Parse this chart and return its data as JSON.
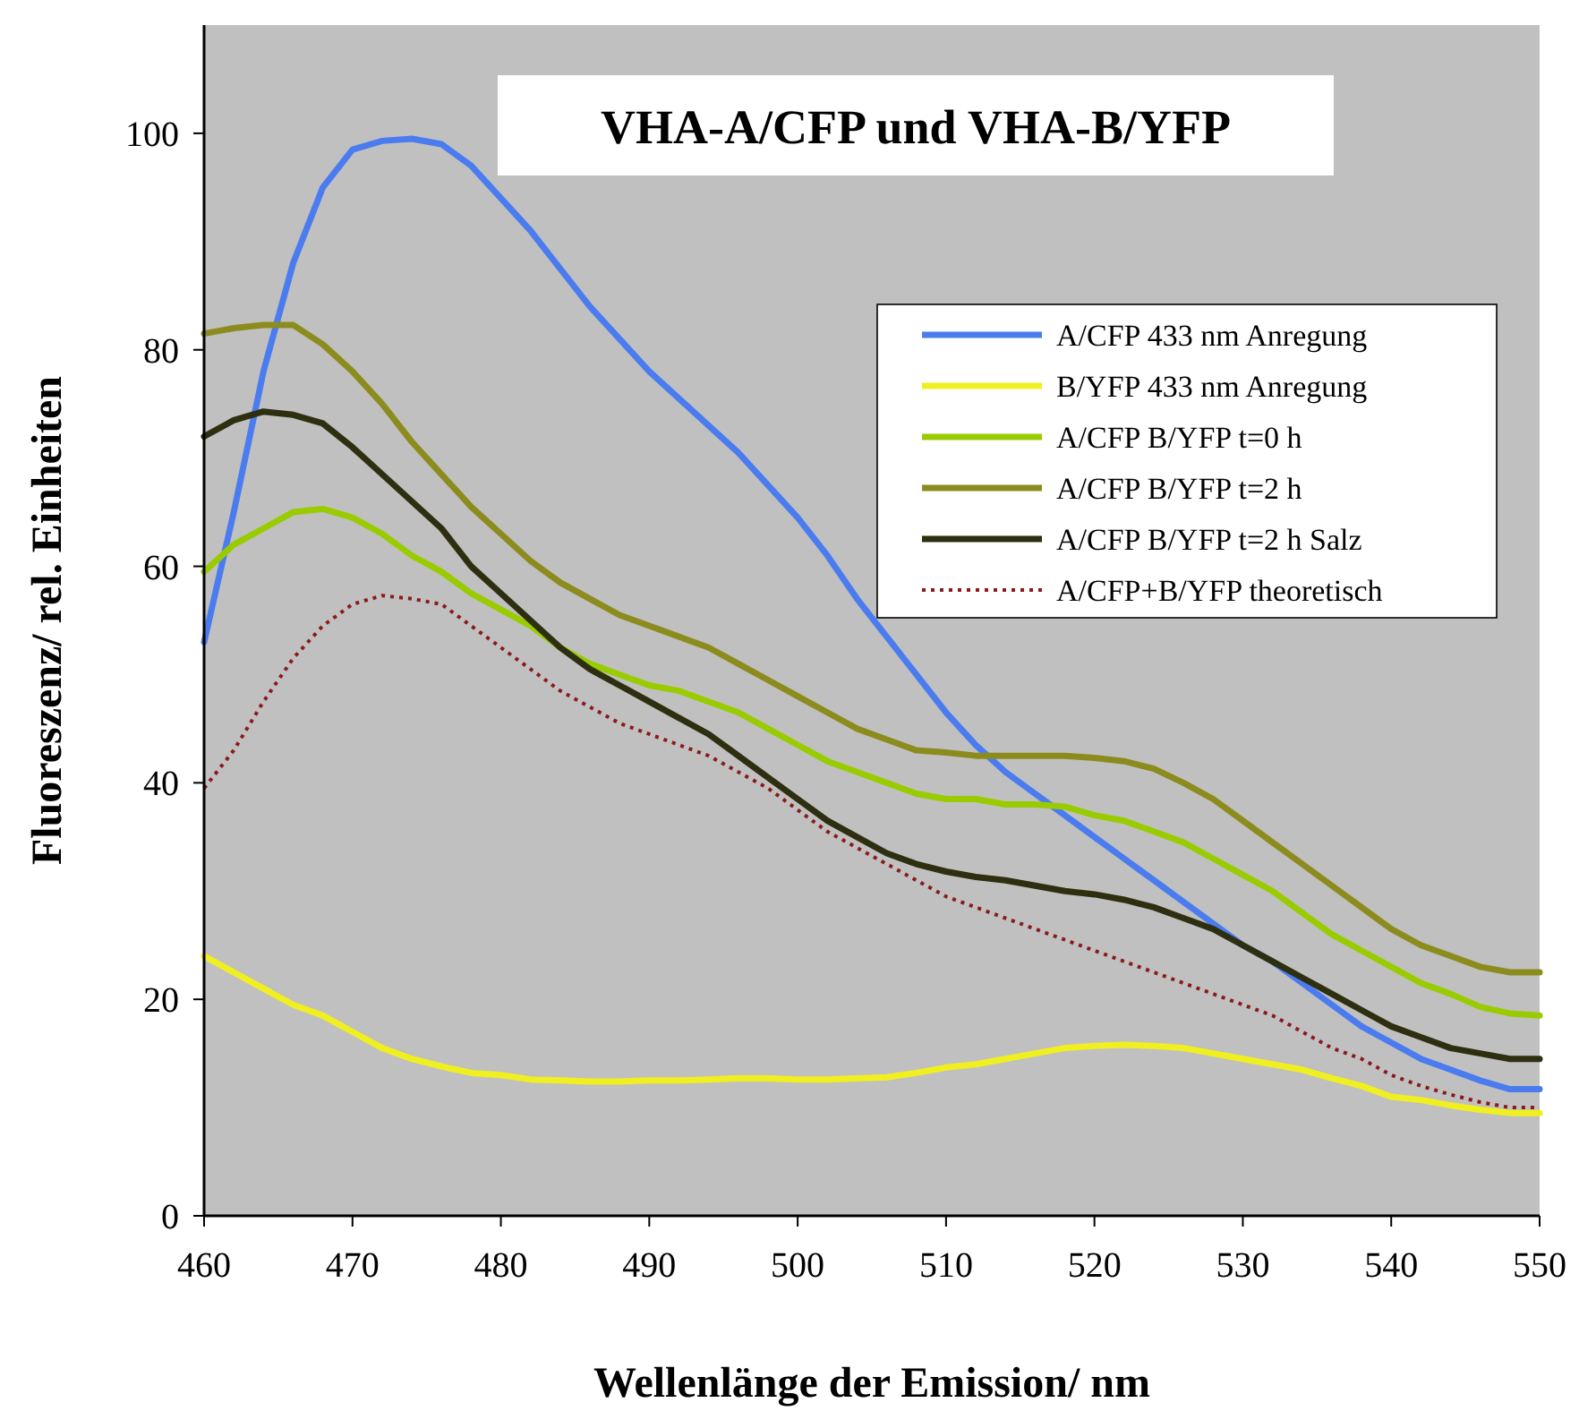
{
  "chart_data": {
    "type": "line",
    "title": "VHA-A/CFP und VHA-B/YFP",
    "xlabel": "Wellenlänge der Emission/ nm",
    "ylabel": "Fluoreszenz/ rel. Einheiten",
    "x": [
      460,
      462,
      464,
      466,
      468,
      470,
      472,
      474,
      476,
      478,
      480,
      482,
      484,
      486,
      488,
      490,
      492,
      494,
      496,
      498,
      500,
      502,
      504,
      506,
      508,
      510,
      512,
      514,
      516,
      518,
      520,
      522,
      524,
      526,
      528,
      530,
      532,
      534,
      536,
      538,
      540,
      542,
      544,
      546,
      548,
      550
    ],
    "series": [
      {
        "name": "A/CFP 433 nm Anregung",
        "color": "#4a7cf0",
        "values": [
          53,
          65,
          78,
          88,
          95,
          98.5,
          99.3,
          99.5,
          99,
          97,
          94,
          91,
          87.5,
          84,
          81,
          78,
          75.5,
          73,
          70.5,
          67.5,
          64.5,
          61,
          57,
          53.5,
          50,
          46.5,
          43.5,
          41,
          39,
          37,
          35,
          33,
          31,
          29,
          27,
          25,
          23.5,
          21.5,
          19.5,
          17.5,
          16,
          14.5,
          13.5,
          12.5,
          11.7,
          11.7
        ]
      },
      {
        "name": "B/YFP 433 nm Anregung",
        "color": "#f0f020",
        "values": [
          24,
          22.5,
          21,
          19.5,
          18.5,
          17,
          15.5,
          14.5,
          13.8,
          13.2,
          13,
          12.6,
          12.5,
          12.4,
          12.4,
          12.5,
          12.5,
          12.6,
          12.7,
          12.7,
          12.6,
          12.6,
          12.7,
          12.8,
          13.2,
          13.7,
          14,
          14.5,
          15,
          15.5,
          15.7,
          15.8,
          15.7,
          15.5,
          15,
          14.5,
          14,
          13.5,
          12.7,
          12,
          11,
          10.7,
          10.2,
          9.8,
          9.5,
          9.5
        ]
      },
      {
        "name": "A/CFP B/YFP t=0 h",
        "color": "#99cc00",
        "values": [
          59.5,
          62,
          63.5,
          65,
          65.3,
          64.5,
          63,
          61,
          59.5,
          57.5,
          56,
          54.5,
          52.5,
          51,
          50,
          49,
          48.5,
          47.5,
          46.5,
          45,
          43.5,
          42,
          41,
          40,
          39,
          38.5,
          38.5,
          38,
          38,
          37.8,
          37,
          36.5,
          35.5,
          34.5,
          33,
          31.5,
          30,
          28,
          26,
          24.5,
          23,
          21.5,
          20.5,
          19.3,
          18.7,
          18.5
        ]
      },
      {
        "name": "A/CFP B/YFP t=2 h",
        "color": "#8c8c1e",
        "values": [
          81.5,
          82,
          82.3,
          82.3,
          80.5,
          78,
          75,
          71.5,
          68.5,
          65.5,
          63,
          60.5,
          58.5,
          57,
          55.5,
          54.5,
          53.5,
          52.5,
          51,
          49.5,
          48,
          46.5,
          45,
          44,
          43,
          42.8,
          42.5,
          42.5,
          42.5,
          42.5,
          42.3,
          42,
          41.3,
          40,
          38.5,
          36.5,
          34.5,
          32.5,
          30.5,
          28.5,
          26.5,
          25,
          24,
          23,
          22.5,
          22.5
        ]
      },
      {
        "name": "A/CFP B/YFP t=2 h Salz",
        "color": "#2e2e10",
        "values": [
          72,
          73.5,
          74.3,
          74,
          73.2,
          71,
          68.5,
          66,
          63.5,
          60,
          57.5,
          55,
          52.5,
          50.5,
          49,
          47.5,
          46,
          44.5,
          42.5,
          40.5,
          38.5,
          36.5,
          35,
          33.5,
          32.5,
          31.8,
          31.3,
          31,
          30.5,
          30,
          29.7,
          29.2,
          28.5,
          27.5,
          26.5,
          25,
          23.5,
          22,
          20.5,
          19,
          17.5,
          16.5,
          15.5,
          15,
          14.5,
          14.5
        ]
      },
      {
        "name": "A/CFP+B/YFP theoretisch",
        "color": "#8b1a1a",
        "line_style": "dotted",
        "values": [
          39.5,
          43,
          47.5,
          51.5,
          54.5,
          56.5,
          57.3,
          57,
          56.5,
          54.5,
          52.5,
          50.5,
          48.5,
          47,
          45.5,
          44.5,
          43.5,
          42.5,
          41,
          39.5,
          37.5,
          35.5,
          34,
          32.5,
          31,
          29.5,
          28.5,
          27.5,
          26.5,
          25.5,
          24.5,
          23.5,
          22.5,
          21.5,
          20.5,
          19.5,
          18.5,
          17,
          15.5,
          14.5,
          13,
          12,
          11.2,
          10.5,
          10,
          10
        ]
      }
    ],
    "xlim": [
      460,
      550
    ],
    "xticks": [
      460,
      470,
      480,
      490,
      500,
      510,
      520,
      530,
      540,
      550
    ],
    "ylim": [
      0,
      110
    ],
    "yticks": [
      0,
      20,
      40,
      60,
      80,
      100
    ],
    "grid": false,
    "legend": "right",
    "marker": "none",
    "line_style": "solid"
  }
}
